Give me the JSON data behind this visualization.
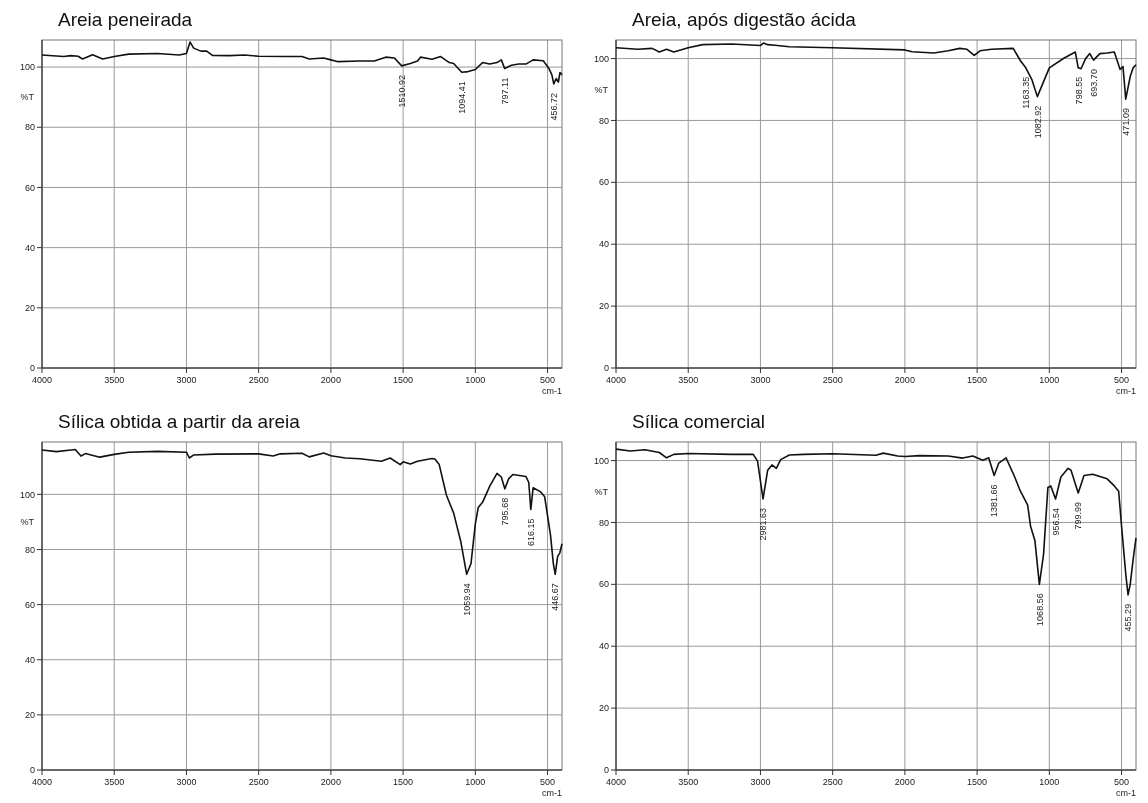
{
  "chart_data": [
    {
      "type": "line",
      "title": "Areia peneirada",
      "xlabel": "cm-1",
      "ylabel": "%T",
      "xlim": [
        4000,
        400
      ],
      "ylim": [
        0,
        109
      ],
      "xticks": [
        4000,
        3500,
        3000,
        2500,
        2000,
        1500,
        1000,
        500
      ],
      "yticks": [
        0,
        20,
        40,
        60,
        80,
        100
      ],
      "grid": true,
      "series": [
        {
          "color": "#111111",
          "x": [
            4000,
            3850,
            3800,
            3750,
            3720,
            3650,
            3580,
            3500,
            3400,
            3200,
            3050,
            3000,
            2975,
            2950,
            2900,
            2860,
            2820,
            2700,
            2600,
            2500,
            2300,
            2200,
            2150,
            2050,
            2000,
            1950,
            1800,
            1700,
            1620,
            1560,
            1510,
            1450,
            1400,
            1380,
            1300,
            1240,
            1180,
            1150,
            1094,
            1050,
            1000,
            950,
            900,
            850,
            820,
            797,
            750,
            700,
            650,
            600,
            530,
            490,
            470,
            457,
            440,
            425,
            414,
            400
          ],
          "values": [
            104,
            103.5,
            103.8,
            103.6,
            102.7,
            104.1,
            102.7,
            103.5,
            104.3,
            104.5,
            104,
            104.5,
            108.3,
            106.3,
            105.3,
            105.3,
            103.9,
            103.8,
            104,
            103.6,
            103.5,
            103.5,
            102.7,
            103,
            102.4,
            101.8,
            102,
            102,
            103.3,
            103,
            100.4,
            101.2,
            102,
            103.3,
            102.6,
            103.5,
            101.5,
            101.2,
            98.3,
            98.5,
            99.2,
            101.5,
            101,
            101.5,
            102.4,
            99.5,
            100.6,
            101,
            101,
            102.4,
            102.1,
            99.5,
            97.4,
            94.4,
            96.2,
            95,
            98.2,
            97.5
          ]
        }
      ],
      "annotations": [
        {
          "text": "1510.92",
          "x": 1510.92,
          "y": 100.4
        },
        {
          "text": "1094.41",
          "x": 1094.41,
          "y": 98.3
        },
        {
          "text": "797.11",
          "x": 797.11,
          "y": 99.5
        },
        {
          "text": "456.72",
          "x": 456.72,
          "y": 94.4
        }
      ]
    },
    {
      "type": "line",
      "title": "Areia, após digestão ácida",
      "xlabel": "cm-1",
      "ylabel": "%T",
      "xlim": [
        4000,
        400
      ],
      "ylim": [
        0,
        106
      ],
      "xticks": [
        4000,
        3500,
        3000,
        2500,
        2000,
        1500,
        1000,
        500
      ],
      "yticks": [
        0,
        20,
        40,
        60,
        80,
        100
      ],
      "grid": true,
      "series": [
        {
          "color": "#111111",
          "x": [
            4000,
            3850,
            3750,
            3700,
            3650,
            3600,
            3500,
            3400,
            3200,
            3000,
            2980,
            2950,
            2900,
            2800,
            2500,
            2000,
            1950,
            1800,
            1700,
            1620,
            1570,
            1520,
            1480,
            1400,
            1250,
            1200,
            1163,
            1120,
            1083,
            1050,
            1000,
            900,
            820,
            800,
            780,
            750,
            720,
            694,
            650,
            600,
            550,
            510,
            490,
            471,
            440,
            420,
            400
          ],
          "values": [
            103.5,
            103,
            103.3,
            102.1,
            103,
            102.1,
            103.5,
            104.5,
            104.7,
            104.2,
            105,
            104.5,
            104.3,
            103.8,
            103.5,
            102.8,
            102.2,
            101.8,
            102.5,
            103.3,
            103,
            101,
            102.5,
            103,
            103.3,
            99.3,
            97,
            93.1,
            87.7,
            91.4,
            97,
            100.1,
            102.1,
            97,
            96.7,
            99.9,
            101.6,
            99.5,
            101.6,
            101.8,
            102.1,
            96.5,
            97.4,
            86.9,
            94.2,
            97,
            98
          ]
        }
      ],
      "annotations": [
        {
          "text": "1163.35",
          "x": 1163.35,
          "y": 97
        },
        {
          "text": "1082.92",
          "x": 1082.92,
          "y": 87.7
        },
        {
          "text": "798.55",
          "x": 798.55,
          "y": 97
        },
        {
          "text": "693.70",
          "x": 693.7,
          "y": 99.5
        },
        {
          "text": "471.09",
          "x": 471.09,
          "y": 86.9
        }
      ]
    },
    {
      "type": "line",
      "title": "Sílica obtida a partir da areia",
      "xlabel": "cm-1",
      "ylabel": "%T",
      "xlim": [
        4000,
        400
      ],
      "ylim": [
        0,
        119
      ],
      "xticks": [
        4000,
        3500,
        3000,
        2500,
        2000,
        1500,
        1000,
        500
      ],
      "yticks": [
        0,
        20,
        40,
        60,
        80,
        100
      ],
      "grid": true,
      "series": [
        {
          "color": "#111111",
          "x": [
            4000,
            3900,
            3800,
            3770,
            3730,
            3700,
            3600,
            3500,
            3400,
            3200,
            3000,
            2980,
            2950,
            2800,
            2500,
            2400,
            2350,
            2200,
            2150,
            2050,
            2000,
            1900,
            1800,
            1650,
            1590,
            1520,
            1500,
            1450,
            1400,
            1300,
            1280,
            1250,
            1200,
            1150,
            1100,
            1060,
            1030,
            1000,
            980,
            950,
            900,
            850,
            820,
            796,
            770,
            740,
            650,
            630,
            616,
            600,
            550,
            520,
            480,
            460,
            447,
            430,
            415,
            400
          ],
          "values": [
            116.1,
            115.5,
            116.1,
            116.3,
            113.9,
            114.8,
            113.5,
            114.5,
            115.3,
            115.6,
            115.3,
            113.2,
            114.3,
            114.6,
            114.7,
            113.9,
            114.7,
            114.9,
            113.6,
            115,
            114,
            113.2,
            112.9,
            112,
            113.2,
            110.8,
            111.8,
            111,
            112,
            113,
            112.8,
            110.8,
            99.7,
            93.2,
            82.7,
            71,
            74.9,
            89.3,
            95.2,
            97.1,
            103,
            107.6,
            106.3,
            102,
            105.6,
            107.2,
            106.5,
            104.3,
            94.5,
            102.4,
            101,
            99.1,
            85.4,
            74.9,
            71,
            77.5,
            78.8,
            82.1
          ]
        }
      ],
      "annotations": [
        {
          "text": "1059.94",
          "x": 1059.94,
          "y": 71
        },
        {
          "text": "795.68",
          "x": 795.68,
          "y": 102
        },
        {
          "text": "616.15",
          "x": 616.15,
          "y": 94.5
        },
        {
          "text": "446.67",
          "x": 446.67,
          "y": 71
        }
      ]
    },
    {
      "type": "line",
      "title": "Sílica comercial",
      "xlabel": "cm-1",
      "ylabel": "%T",
      "xlim": [
        4000,
        400
      ],
      "ylim": [
        0,
        106
      ],
      "xticks": [
        4000,
        3500,
        3000,
        2500,
        2000,
        1500,
        1000,
        500
      ],
      "yticks": [
        0,
        20,
        40,
        60,
        80,
        100
      ],
      "grid": true,
      "series": [
        {
          "color": "#111111",
          "x": [
            4000,
            3900,
            3800,
            3700,
            3650,
            3600,
            3500,
            3200,
            3050,
            3020,
            2982,
            2950,
            2920,
            2890,
            2860,
            2800,
            2700,
            2500,
            2200,
            2150,
            2050,
            2000,
            1900,
            1700,
            1600,
            1530,
            1460,
            1420,
            1382,
            1350,
            1300,
            1250,
            1200,
            1150,
            1130,
            1100,
            1069,
            1040,
            1010,
            990,
            957,
            920,
            870,
            850,
            800,
            760,
            700,
            600,
            550,
            520,
            500,
            470,
            455,
            440,
            420,
            400
          ],
          "values": [
            103.7,
            103.1,
            103.5,
            102.6,
            100.9,
            102,
            102.3,
            102,
            102,
            99.8,
            87.6,
            96.9,
            98.6,
            97.5,
            100.3,
            101.8,
            102,
            102.2,
            101.7,
            102.4,
            101.5,
            101.3,
            101.6,
            101.5,
            100.8,
            101.5,
            100.1,
            100.9,
            95.2,
            99.2,
            100.9,
            95.8,
            90.1,
            85.6,
            78.8,
            74.2,
            60,
            69.7,
            91.3,
            91.8,
            87.6,
            94.7,
            97.5,
            96.9,
            89.5,
            95.2,
            95.6,
            94.1,
            91.8,
            90.1,
            78.8,
            62.9,
            56.6,
            60,
            68,
            75
          ]
        }
      ],
      "annotations": [
        {
          "text": "2981.63",
          "x": 2981.63,
          "y": 87.6
        },
        {
          "text": "1381.66",
          "x": 1381.66,
          "y": 95.2
        },
        {
          "text": "1068.56",
          "x": 1068.56,
          "y": 60
        },
        {
          "text": "956.54",
          "x": 956.54,
          "y": 87.6
        },
        {
          "text": "799.99",
          "x": 799.99,
          "y": 89.5
        },
        {
          "text": "455.29",
          "x": 455.29,
          "y": 56.6
        }
      ]
    }
  ]
}
